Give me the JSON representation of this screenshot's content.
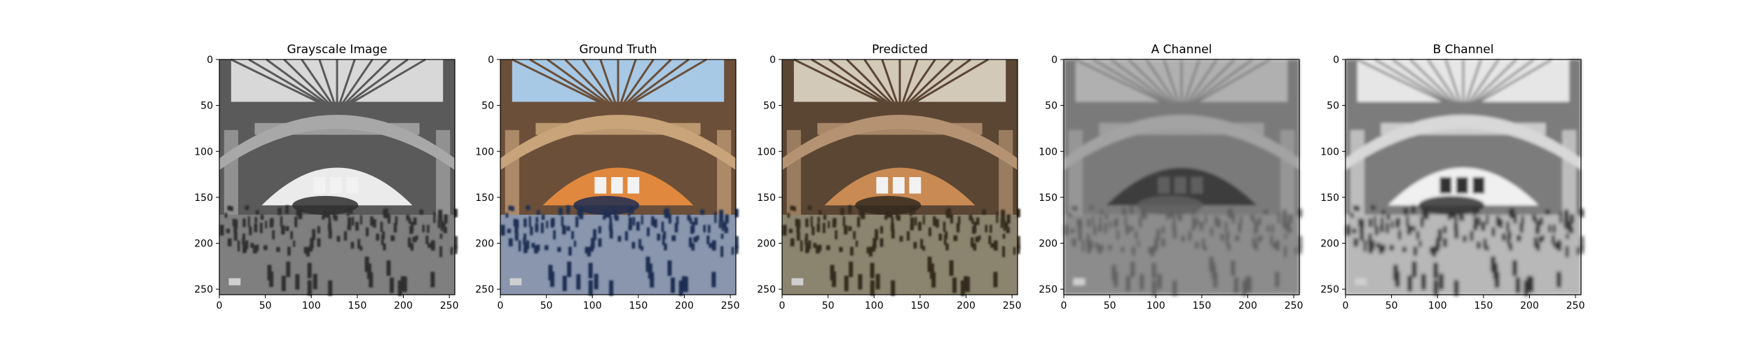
{
  "figure": {
    "panel_count": 5
  },
  "chart_data": {
    "type": "image-grid",
    "panels": [
      {
        "title": "Grayscale Image",
        "render": "grayscale",
        "xlim": [
          0,
          256
        ],
        "ylim": [
          0,
          256
        ],
        "x_ticks": [
          0,
          50,
          100,
          150,
          200,
          250
        ],
        "y_ticks": [
          0,
          50,
          100,
          150,
          200,
          250
        ],
        "colors": {
          "floor": "#7f7f7f",
          "walls": "#5a5a5a",
          "arch": "#a8a8a8",
          "glass": "#d8d8d8",
          "crowd": "#2f2f2f",
          "doorway": "#ebebeb"
        }
      },
      {
        "title": "Ground Truth",
        "render": "color",
        "xlim": [
          0,
          256
        ],
        "ylim": [
          0,
          256
        ],
        "x_ticks": [
          0,
          50,
          100,
          150,
          200,
          250
        ],
        "y_ticks": [
          0,
          50,
          100,
          150,
          200,
          250
        ],
        "colors": {
          "floor": "#8a96ad",
          "walls": "#6b4f39",
          "arch": "#c9a47a",
          "glass": "#a7c9e6",
          "crowd": "#1f2d52",
          "doorway": "#e0883e"
        }
      },
      {
        "title": "Predicted",
        "render": "sepia",
        "xlim": [
          0,
          256
        ],
        "ylim": [
          0,
          256
        ],
        "x_ticks": [
          0,
          50,
          100,
          150,
          200,
          250
        ],
        "y_ticks": [
          0,
          50,
          100,
          150,
          200,
          250
        ],
        "colors": {
          "floor": "#8b8570",
          "walls": "#5b4634",
          "arch": "#b59372",
          "glass": "#d3c9b9",
          "crowd": "#34291f",
          "doorway": "#c98a53"
        }
      },
      {
        "title": "A Channel",
        "render": "blur-gray",
        "xlim": [
          0,
          256
        ],
        "ylim": [
          0,
          256
        ],
        "x_ticks": [
          0,
          50,
          100,
          150,
          200,
          250
        ],
        "y_ticks": [
          0,
          50,
          100,
          150,
          200,
          250
        ],
        "colors": {
          "floor": "#8c8c8c",
          "walls": "#7a7a7a",
          "arch": "#a3a3a3",
          "glass": "#b0b0b0",
          "crowd": "#5f5f5f",
          "doorway": "#3d3d3d"
        }
      },
      {
        "title": "B Channel",
        "render": "blur-gray",
        "xlim": [
          0,
          256
        ],
        "ylim": [
          0,
          256
        ],
        "x_ticks": [
          0,
          50,
          100,
          150,
          200,
          250
        ],
        "y_ticks": [
          0,
          50,
          100,
          150,
          200,
          250
        ],
        "colors": {
          "floor": "#b8b8b8",
          "walls": "#7c7c7c",
          "arch": "#d8d8d8",
          "glass": "#e6e6e6",
          "crowd": "#323232",
          "doorway": "#f0f0f0"
        }
      }
    ]
  }
}
